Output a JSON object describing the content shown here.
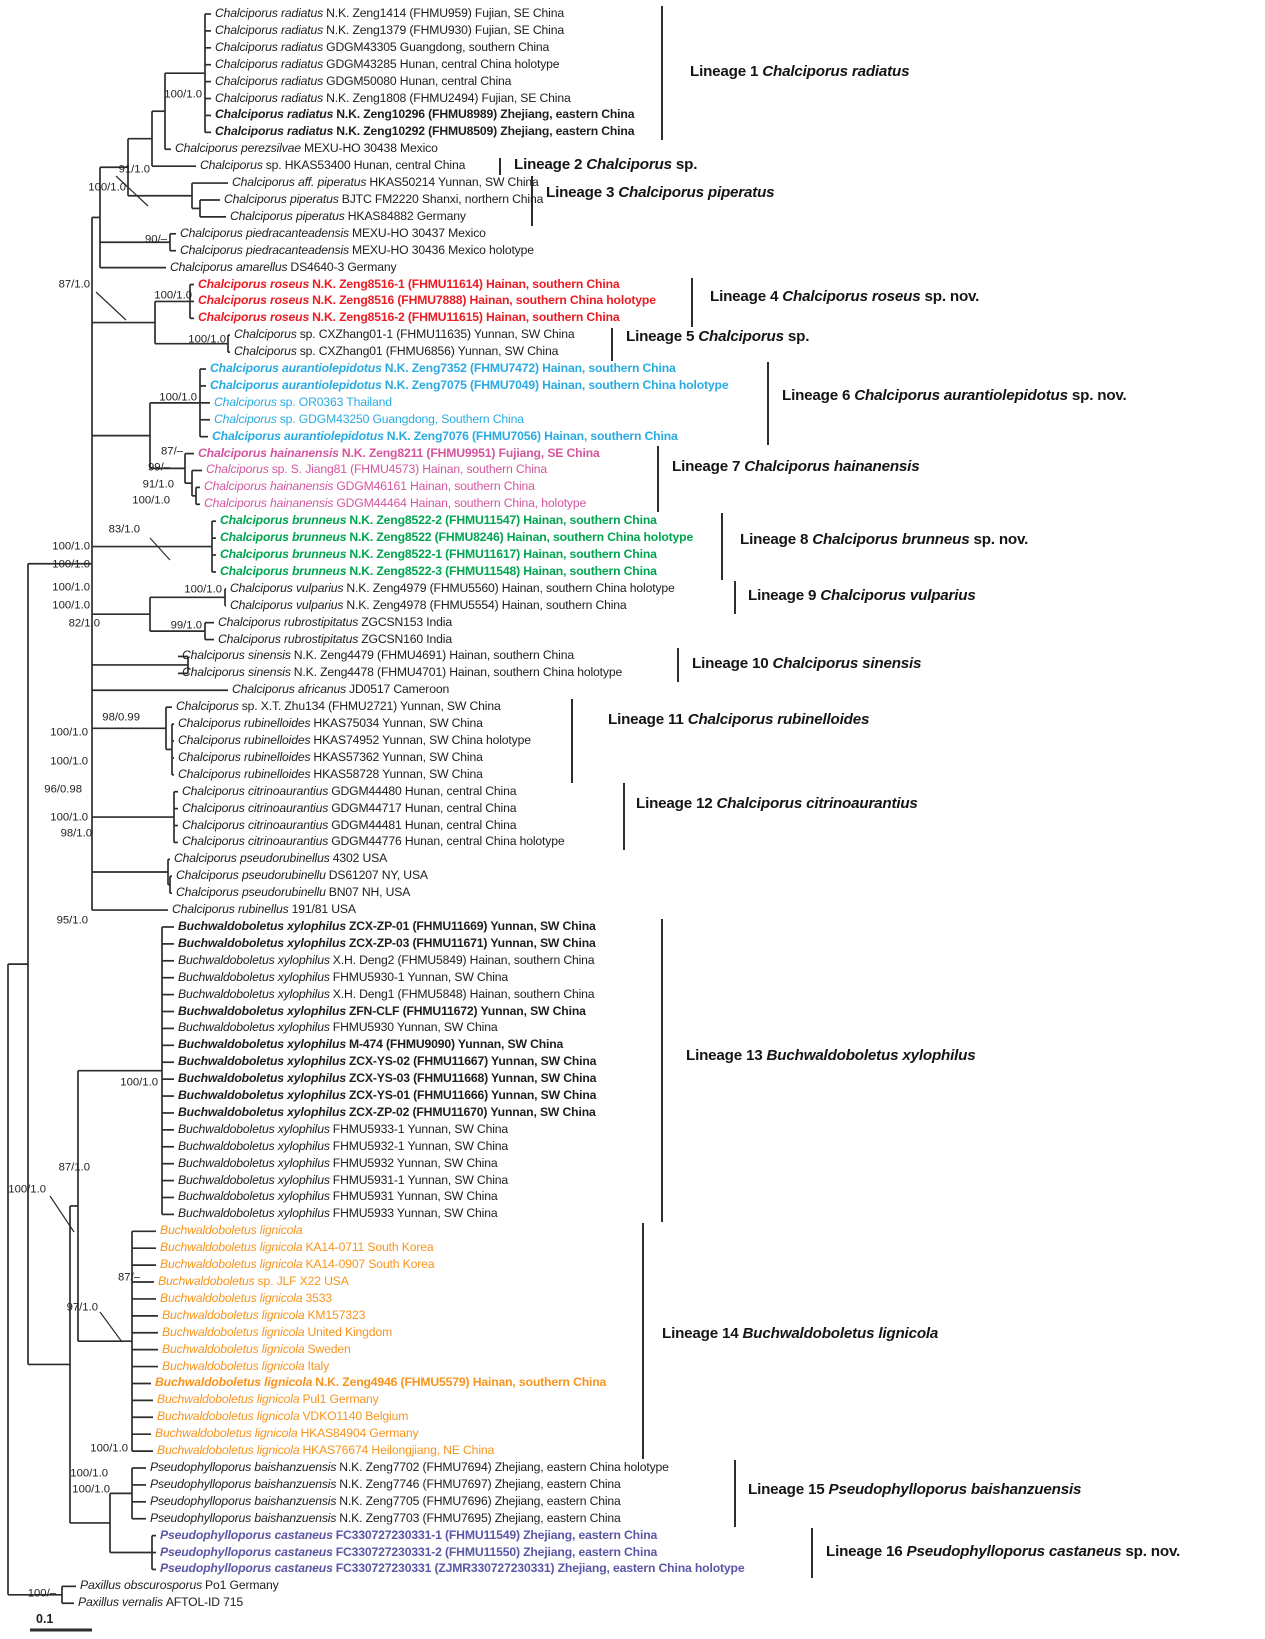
{
  "figure": {
    "type": "phylogenetic tree",
    "scale_bar_label": "0.1"
  },
  "colors": {
    "black": "#1f1d1e",
    "red": "#ec1c24",
    "blue": "#29abe2",
    "pink": "#d4569f",
    "green": "#00a550",
    "orange": "#f7941d",
    "purple": "#5b57a7",
    "line": "#2e2d2c"
  },
  "taxa": [
    {
      "n": "Chalciporus radiatus",
      "i": "N.K. Zeng1414 (FHMU959) Fujian, SE China",
      "c": "black",
      "b": false
    },
    {
      "n": "Chalciporus radiatus",
      "i": "N.K. Zeng1379 (FHMU930) Fujian, SE China",
      "c": "black",
      "b": false
    },
    {
      "n": "Chalciporus radiatus",
      "i": "GDGM43305 Guangdong, southern China",
      "c": "black",
      "b": false
    },
    {
      "n": "Chalciporus radiatus",
      "i": "GDGM43285 Hunan, central China holotype",
      "c": "black",
      "b": false
    },
    {
      "n": "Chalciporus radiatus",
      "i": "GDGM50080 Hunan, central China",
      "c": "black",
      "b": false
    },
    {
      "n": "Chalciporus radiatus",
      "i": "N.K. Zeng1808 (FHMU2494) Fujian, SE China",
      "c": "black",
      "b": false
    },
    {
      "n": "Chalciporus radiatus",
      "i": "N.K. Zeng10296 (FHMU8989) Zhejiang, eastern China",
      "c": "black",
      "b": true
    },
    {
      "n": "Chalciporus radiatus",
      "i": "N.K. Zeng10292 (FHMU8509) Zhejiang, eastern China",
      "c": "black",
      "b": true
    },
    {
      "n": "Chalciporus perezsilvae",
      "i": "MEXU-HO 30438 Mexico",
      "c": "black",
      "b": false
    },
    {
      "n": "Chalciporus",
      "i": "sp. HKAS53400 Hunan, central China",
      "c": "black",
      "b": false
    },
    {
      "n": "Chalciporus aff. piperatus",
      "i": "HKAS50214 Yunnan, SW China",
      "c": "black",
      "b": false
    },
    {
      "n": "Chalciporus piperatus",
      "i": "BJTC FM2220 Shanxi, northern China",
      "c": "black",
      "b": false
    },
    {
      "n": "Chalciporus piperatus",
      "i": "HKAS84882 Germany",
      "c": "black",
      "b": false
    },
    {
      "n": "Chalciporus piedracanteadensis",
      "i": "MEXU-HO 30437 Mexico",
      "c": "black",
      "b": false
    },
    {
      "n": "Chalciporus piedracanteadensis",
      "i": "MEXU-HO 30436 Mexico holotype",
      "c": "black",
      "b": false
    },
    {
      "n": "Chalciporus amarellus",
      "i": "DS4640-3 Germany",
      "c": "black",
      "b": false
    },
    {
      "n": "Chalciporus roseus",
      "i": "N.K. Zeng8516-1 (FHMU11614) Hainan, southern China",
      "c": "red",
      "b": true
    },
    {
      "n": "Chalciporus roseus",
      "i": "N.K. Zeng8516 (FHMU7888) Hainan, southern China holotype",
      "c": "red",
      "b": true
    },
    {
      "n": "Chalciporus roseus",
      "i": "N.K. Zeng8516-2 (FHMU11615) Hainan, southern China",
      "c": "red",
      "b": true
    },
    {
      "n": "Chalciporus",
      "i": "sp. CXZhang01-1 (FHMU11635) Yunnan, SW China",
      "c": "black",
      "b": false
    },
    {
      "n": "Chalciporus",
      "i": "sp. CXZhang01 (FHMU6856) Yunnan, SW China",
      "c": "black",
      "b": false
    },
    {
      "n": "Chalciporus aurantiolepidotus",
      "i": "N.K. Zeng7352 (FHMU7472) Hainan, southern China",
      "c": "blue",
      "b": true
    },
    {
      "n": "Chalciporus aurantiolepidotus",
      "i": "N.K. Zeng7075 (FHMU7049) Hainan, southern China holotype",
      "c": "blue",
      "b": true
    },
    {
      "n": "Chalciporus",
      "i": "sp. OR0363 Thailand",
      "c": "blue",
      "b": false
    },
    {
      "n": "Chalciporus",
      "i": "sp. GDGM43250 Guangdong, Southern China",
      "c": "blue",
      "b": false
    },
    {
      "n": "Chalciporus aurantiolepidotus",
      "i": "N.K. Zeng7076 (FHMU7056) Hainan, southern China",
      "c": "blue",
      "b": true
    },
    {
      "n": "Chalciporus hainanensis",
      "i": "N.K. Zeng8211 (FHMU9951) Fujiang, SE China",
      "c": "pink",
      "b": true
    },
    {
      "n": "Chalciporus",
      "i": "sp. S. Jiang81 (FHMU4573) Hainan, southern China",
      "c": "pink",
      "b": false
    },
    {
      "n": "Chalciporus hainanensis",
      "i": "GDGM46161 Hainan, southern China",
      "c": "pink",
      "b": false
    },
    {
      "n": "Chalciporus hainanensis",
      "i": "GDGM44464 Hainan, southern China, holotype",
      "c": "pink",
      "b": false
    },
    {
      "n": "Chalciporus brunneus",
      "i": "N.K. Zeng8522-2 (FHMU11547) Hainan, southern China",
      "c": "green",
      "b": true
    },
    {
      "n": "Chalciporus brunneus",
      "i": "N.K. Zeng8522 (FHMU8246) Hainan, southern China holotype",
      "c": "green",
      "b": true
    },
    {
      "n": "Chalciporus brunneus",
      "i": "N.K. Zeng8522-1 (FHMU11617) Hainan, southern China",
      "c": "green",
      "b": true
    },
    {
      "n": "Chalciporus brunneus",
      "i": "N.K. Zeng8522-3 (FHMU11548) Hainan, southern China",
      "c": "green",
      "b": true
    },
    {
      "n": "Chalciporus vulparius",
      "i": "N.K. Zeng4979 (FHMU5560) Hainan, southern China holotype",
      "c": "black",
      "b": false
    },
    {
      "n": "Chalciporus vulparius",
      "i": "N.K. Zeng4978 (FHMU5554) Hainan, southern China",
      "c": "black",
      "b": false
    },
    {
      "n": "Chalciporus rubrostipitatus",
      "i": "ZGCSN153 India",
      "c": "black",
      "b": false
    },
    {
      "n": "Chalciporus rubrostipitatus",
      "i": "ZGCSN160 India",
      "c": "black",
      "b": false
    },
    {
      "n": "Chalciporus sinensis",
      "i": "N.K. Zeng4479 (FHMU4691) Hainan, southern China",
      "c": "black",
      "b": false
    },
    {
      "n": "Chalciporus sinensis",
      "i": "N.K. Zeng4478 (FHMU4701) Hainan, southern China holotype",
      "c": "black",
      "b": false
    },
    {
      "n": "Chalciporus africanus",
      "i": "JD0517 Cameroon",
      "c": "black",
      "b": false
    },
    {
      "n": "Chalciporus",
      "i": "sp. X.T. Zhu134 (FHMU2721) Yunnan, SW China",
      "c": "black",
      "b": false
    },
    {
      "n": "Chalciporus rubinelloides",
      "i": "HKAS75034 Yunnan, SW China",
      "c": "black",
      "b": false
    },
    {
      "n": "Chalciporus rubinelloides",
      "i": "HKAS74952 Yunnan, SW China holotype",
      "c": "black",
      "b": false
    },
    {
      "n": "Chalciporus rubinelloides",
      "i": "HKAS57362 Yunnan, SW China",
      "c": "black",
      "b": false
    },
    {
      "n": "Chalciporus rubinelloides",
      "i": "HKAS58728 Yunnan, SW China",
      "c": "black",
      "b": false
    },
    {
      "n": "Chalciporus citrinoaurantius",
      "i": "GDGM44480 Hunan, central China",
      "c": "black",
      "b": false
    },
    {
      "n": "Chalciporus citrinoaurantius",
      "i": "GDGM44717 Hunan, central China",
      "c": "black",
      "b": false
    },
    {
      "n": "Chalciporus citrinoaurantius",
      "i": "GDGM44481 Hunan, central China",
      "c": "black",
      "b": false
    },
    {
      "n": "Chalciporus citrinoaurantius",
      "i": "GDGM44776 Hunan, central China holotype",
      "c": "black",
      "b": false
    },
    {
      "n": "Chalciporus pseudorubinellus",
      "i": "4302 USA",
      "c": "black",
      "b": false
    },
    {
      "n": "Chalciporus pseudorubinellu",
      "i": "DS61207 NY, USA",
      "c": "black",
      "b": false
    },
    {
      "n": "Chalciporus pseudorubinellu",
      "i": "BN07 NH, USA",
      "c": "black",
      "b": false
    },
    {
      "n": "Chalciporus rubinellus",
      "i": "191/81 USA",
      "c": "black",
      "b": false
    },
    {
      "n": "Buchwaldoboletus xylophilus",
      "i": "ZCX-ZP-01 (FHMU11669) Yunnan, SW China",
      "c": "black",
      "b": true
    },
    {
      "n": "Buchwaldoboletus xylophilus",
      "i": "ZCX-ZP-03 (FHMU11671) Yunnan, SW China",
      "c": "black",
      "b": true
    },
    {
      "n": "Buchwaldoboletus xylophilus",
      "i": "X.H. Deng2 (FHMU5849) Hainan, southern China",
      "c": "black",
      "b": false
    },
    {
      "n": "Buchwaldoboletus xylophilus",
      "i": "FHMU5930-1 Yunnan, SW China",
      "c": "black",
      "b": false
    },
    {
      "n": "Buchwaldoboletus xylophilus",
      "i": "X.H. Deng1 (FHMU5848) Hainan, southern China",
      "c": "black",
      "b": false
    },
    {
      "n": "Buchwaldoboletus xylophilus",
      "i": "ZFN-CLF (FHMU11672) Yunnan, SW China",
      "c": "black",
      "b": true
    },
    {
      "n": "Buchwaldoboletus xylophilus",
      "i": "FHMU5930 Yunnan, SW China",
      "c": "black",
      "b": false
    },
    {
      "n": "Buchwaldoboletus xylophilus",
      "i": "M-474 (FHMU9090) Yunnan, SW China",
      "c": "black",
      "b": true
    },
    {
      "n": "Buchwaldoboletus xylophilus",
      "i": "ZCX-YS-02 (FHMU11667) Yunnan, SW China",
      "c": "black",
      "b": true
    },
    {
      "n": "Buchwaldoboletus xylophilus",
      "i": "ZCX-YS-03 (FHMU11668) Yunnan, SW China",
      "c": "black",
      "b": true
    },
    {
      "n": "Buchwaldoboletus xylophilus",
      "i": "ZCX-YS-01 (FHMU11666) Yunnan, SW China",
      "c": "black",
      "b": true
    },
    {
      "n": "Buchwaldoboletus xylophilus",
      "i": "ZCX-ZP-02 (FHMU11670) Yunnan, SW China",
      "c": "black",
      "b": true
    },
    {
      "n": "Buchwaldoboletus xylophilus",
      "i": "FHMU5933-1 Yunnan, SW China",
      "c": "black",
      "b": false
    },
    {
      "n": "Buchwaldoboletus xylophilus",
      "i": "FHMU5932-1 Yunnan, SW China",
      "c": "black",
      "b": false
    },
    {
      "n": "Buchwaldoboletus xylophilus",
      "i": "FHMU5932 Yunnan, SW China",
      "c": "black",
      "b": false
    },
    {
      "n": "Buchwaldoboletus xylophilus",
      "i": "FHMU5931-1 Yunnan, SW China",
      "c": "black",
      "b": false
    },
    {
      "n": "Buchwaldoboletus xylophilus",
      "i": "FHMU5931 Yunnan, SW China",
      "c": "black",
      "b": false
    },
    {
      "n": "Buchwaldoboletus xylophilus",
      "i": "FHMU5933 Yunnan, SW China",
      "c": "black",
      "b": false
    },
    {
      "n": "Buchwaldoboletus lignicola",
      "i": "",
      "c": "orange",
      "b": false
    },
    {
      "n": "Buchwaldoboletus lignicola",
      "i": "KA14-0711 South Korea",
      "c": "orange",
      "b": false
    },
    {
      "n": "Buchwaldoboletus lignicola",
      "i": "KA14-0907 South Korea",
      "c": "orange",
      "b": false
    },
    {
      "n": "Buchwaldoboletus",
      "i": "sp. JLF X22 USA",
      "c": "orange",
      "b": false
    },
    {
      "n": "Buchwaldoboletus lignicola",
      "i": "3533",
      "c": "orange",
      "b": false
    },
    {
      "n": "Buchwaldoboletus lignicola",
      "i": "KM157323",
      "c": "orange",
      "b": false
    },
    {
      "n": "Buchwaldoboletus lignicola",
      "i": "United Kingdom",
      "c": "orange",
      "b": false
    },
    {
      "n": "Buchwaldoboletus lignicola",
      "i": "Sweden",
      "c": "orange",
      "b": false
    },
    {
      "n": "Buchwaldoboletus lignicola",
      "i": "Italy",
      "c": "orange",
      "b": false
    },
    {
      "n": "Buchwaldoboletus lignicola",
      "i": "N.K. Zeng4946 (FHMU5579) Hainan, southern China",
      "c": "orange",
      "b": true
    },
    {
      "n": "Buchwaldoboletus lignicola",
      "i": "Pul1 Germany",
      "c": "orange",
      "b": false
    },
    {
      "n": "Buchwaldoboletus lignicola",
      "i": "VDKO1140 Belgium",
      "c": "orange",
      "b": false
    },
    {
      "n": "Buchwaldoboletus lignicola",
      "i": "HKAS84904 Germany",
      "c": "orange",
      "b": false
    },
    {
      "n": "Buchwaldoboletus lignicola",
      "i": "HKAS76674 Heilongjiang, NE China",
      "c": "orange",
      "b": false
    },
    {
      "n": "Pseudophylloporus baishanzuensis",
      "i": "N.K. Zeng7702 (FHMU7694) Zhejiang, eastern China holotype",
      "c": "black",
      "b": false
    },
    {
      "n": "Pseudophylloporus baishanzuensis",
      "i": "N.K. Zeng7746 (FHMU7697) Zhejiang, eastern China",
      "c": "black",
      "b": false
    },
    {
      "n": "Pseudophylloporus baishanzuensis",
      "i": "N.K. Zeng7705 (FHMU7696) Zhejiang, eastern China",
      "c": "black",
      "b": false
    },
    {
      "n": "Pseudophylloporus baishanzuensis",
      "i": "N.K. Zeng7703 (FHMU7695) Zhejiang, eastern China",
      "c": "black",
      "b": false
    },
    {
      "n": "Pseudophylloporus castaneus",
      "i": "FC330727230331-1 (FHMU11549) Zhejiang, eastern China",
      "c": "purple",
      "b": true
    },
    {
      "n": "Pseudophylloporus castaneus",
      "i": "FC330727230331-2 (FHMU11550) Zhejiang, eastern China",
      "c": "purple",
      "b": true
    },
    {
      "n": "Pseudophylloporus castaneus",
      "i": "FC330727230331 (ZJMR330727230331) Zhejiang, eastern China holotype",
      "c": "purple",
      "b": true
    },
    {
      "n": "Paxillus obscurosporus",
      "i": "Po1 Germany",
      "c": "black",
      "b": false
    },
    {
      "n": "Paxillus vernalis",
      "i": "AFTOL-ID 715",
      "c": "black",
      "b": false
    }
  ],
  "supports": [
    "100/1.0",
    "91/1.0",
    "100/1.0",
    "90/–",
    "87/1.0",
    "100/1.0",
    "100/1.0",
    "100/1.0",
    "87/–",
    "99/–",
    "91/1.0",
    "100/1.0",
    "83/1.0",
    "100/1.0",
    "100/1.0",
    "100/1.0",
    "100/1.0",
    "99/1.0",
    "100/1.0",
    "82/1.0",
    "98/0.99",
    "100/1.0",
    "100/1.0",
    "96/0.98",
    "100/1.0",
    "98/1.0",
    "95/1.0",
    "100/1.0",
    "87/1.0",
    "100/1.0",
    "87/–",
    "97/1.0",
    "100/1.0",
    "100/1.0",
    "100/1.0",
    "100/–"
  ],
  "lineages": [
    {
      "t": "Lineage 1",
      "n": "Chalciporus radiatus",
      "s": ""
    },
    {
      "t": "Lineage 2",
      "n": "Chalciporus",
      "s": "sp."
    },
    {
      "t": "Lineage 3",
      "n": "Chalciporus piperatus",
      "s": ""
    },
    {
      "t": "Lineage 4",
      "n": "Chalciporus roseus",
      "s": "sp. nov."
    },
    {
      "t": "Lineage 5",
      "n": "Chalciporus",
      "s": "sp."
    },
    {
      "t": "Lineage 6",
      "n": "Chalciporus aurantiolepidotus",
      "s": "sp. nov."
    },
    {
      "t": "Lineage 7",
      "n": "Chalciporus hainanensis",
      "s": ""
    },
    {
      "t": "Lineage 8",
      "n": "Chalciporus brunneus",
      "s": "sp. nov."
    },
    {
      "t": "Lineage 9",
      "n": "Chalciporus vulparius",
      "s": ""
    },
    {
      "t": "Lineage 10",
      "n": "Chalciporus sinensis",
      "s": ""
    },
    {
      "t": "Lineage 11",
      "n": "Chalciporus rubinelloides",
      "s": ""
    },
    {
      "t": "Lineage 12",
      "n": "Chalciporus citrinoaurantius",
      "s": ""
    },
    {
      "t": "Lineage 13",
      "n": "Buchwaldoboletus xylophilus",
      "s": ""
    },
    {
      "t": "Lineage 14",
      "n": "Buchwaldoboletus lignicola",
      "s": ""
    },
    {
      "t": "Lineage 15",
      "n": "Pseudophylloporus baishanzuensis",
      "s": ""
    },
    {
      "t": "Lineage 16",
      "n": "Pseudophylloporus castaneus",
      "s": "sp. nov."
    }
  ]
}
